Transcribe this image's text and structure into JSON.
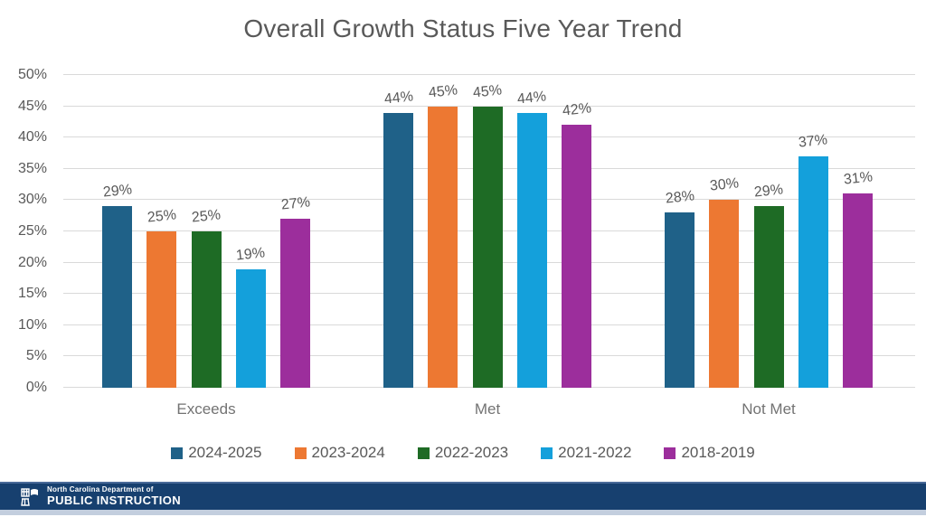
{
  "title": "Overall Growth Status Five Year Trend",
  "chart_data": {
    "type": "bar",
    "title": "Overall Growth Status Five Year Trend",
    "categories": [
      "Exceeds",
      "Met",
      "Not Met"
    ],
    "series": [
      {
        "name": "2024-2025",
        "color": "#1F6188",
        "values": [
          29,
          44,
          28
        ]
      },
      {
        "name": "2023-2024",
        "color": "#ED7832",
        "values": [
          25,
          45,
          30
        ]
      },
      {
        "name": "2022-2023",
        "color": "#1E6B25",
        "values": [
          25,
          45,
          29
        ]
      },
      {
        "name": "2021-2022",
        "color": "#14A0DB",
        "values": [
          19,
          44,
          37
        ]
      },
      {
        "name": "2018-2019",
        "color": "#9C2E9C",
        "values": [
          27,
          42,
          31
        ]
      }
    ],
    "value_suffix": "%",
    "ylim": [
      0,
      50
    ],
    "ytick_step": 5,
    "ytick_labels": [
      "0%",
      "5%",
      "10%",
      "15%",
      "20%",
      "25%",
      "30%",
      "35%",
      "40%",
      "45%",
      "50%"
    ],
    "grid": true,
    "legend_position": "bottom",
    "colors": {
      "title_text": "#595959",
      "axis_text": "#595959",
      "gridline": "#d9d9d9",
      "footer_bar": "#17406F"
    }
  },
  "footer": {
    "org_line1": "North Carolina Department of",
    "org_line2": "PUBLIC INSTRUCTION"
  }
}
